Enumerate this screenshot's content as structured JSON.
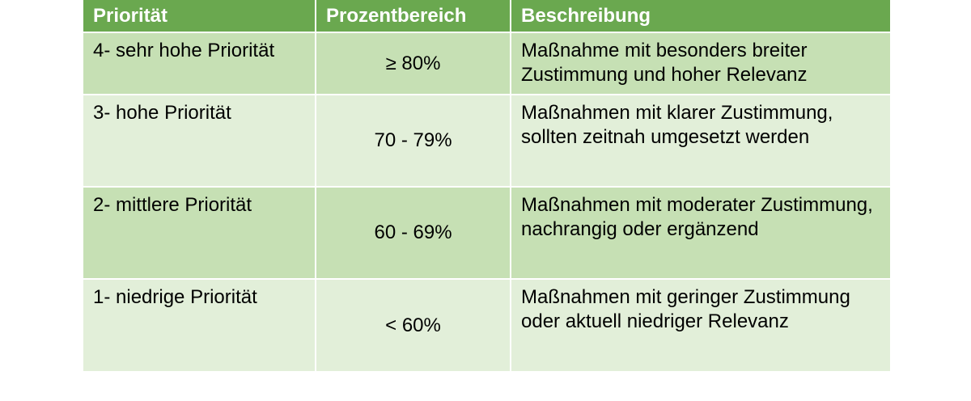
{
  "colors": {
    "header_bg": "#6aa84f",
    "row_dark": "#c6e0b4",
    "row_light": "#e2efd9"
  },
  "table": {
    "headers": [
      "Priorität",
      "Prozentbereich",
      "Beschreibung"
    ],
    "rows": [
      {
        "priority": "4- sehr hohe Priorität",
        "range": "≥ 80%",
        "description": "Maßnahme mit besonders breiter Zustimmung und hoher Relevanz"
      },
      {
        "priority": "3- hohe Priorität",
        "range": "70 - 79%",
        "description": "Maßnahmen mit klarer Zustimmung, sollten zeitnah umgesetzt werden"
      },
      {
        "priority": "2- mittlere Priorität",
        "range": "60 - 69%",
        "description": "Maßnahmen mit moderater Zustimmung, nachrangig oder ergänzend"
      },
      {
        "priority": "1- niedrige Priorität",
        "range": "< 60%",
        "description": "Maßnahmen mit geringer Zustimmung oder aktuell niedriger Relevanz"
      }
    ]
  }
}
